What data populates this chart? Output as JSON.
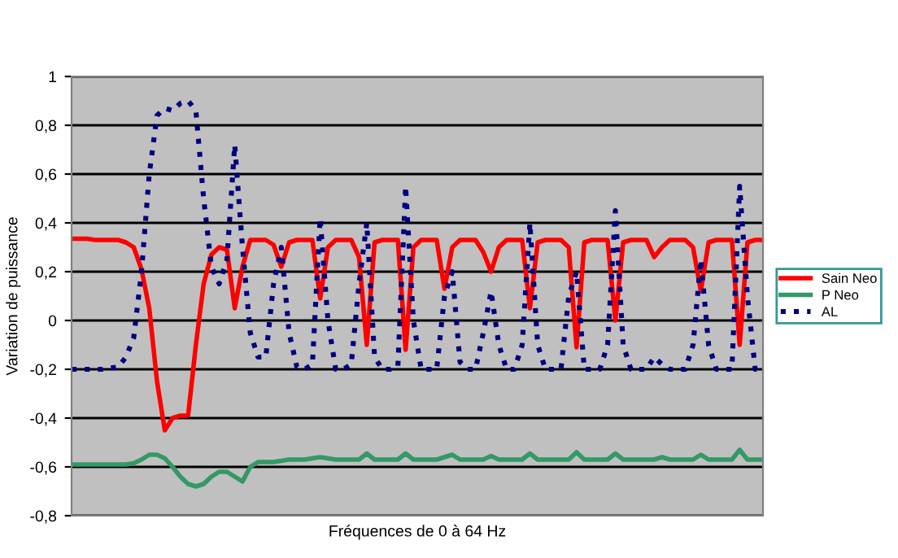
{
  "chart_data": {
    "type": "line",
    "xlabel": "Fréquences de 0 à 64 Hz",
    "ylabel": "Variation de puissance",
    "categories": [
      null,
      null,
      null,
      null,
      null,
      null,
      null,
      null,
      null,
      null,
      null,
      null,
      null,
      null,
      null,
      null,
      null,
      null,
      null,
      null,
      null,
      null,
      null,
      null,
      null,
      null,
      null,
      null,
      null,
      null,
      null,
      null,
      null,
      null,
      null,
      null,
      null,
      null,
      null,
      null,
      null,
      null,
      null,
      null,
      null,
      null,
      null,
      null,
      null,
      null,
      null,
      null,
      null,
      null,
      null,
      null,
      null,
      null,
      null,
      null,
      null,
      null,
      null,
      null,
      null,
      null,
      null,
      null,
      null,
      null,
      null,
      null,
      null,
      null,
      null,
      null,
      null,
      null,
      null,
      null,
      null,
      null,
      null,
      null,
      null,
      null,
      null,
      null,
      null,
      null
    ],
    "series": [
      {
        "name": "Sain Neo",
        "color": "#ff0000",
        "line_style": "solid",
        "values": [
          0.335,
          0.335,
          0.335,
          0.33,
          0.33,
          0.33,
          0.33,
          0.32,
          0.3,
          0.21,
          0.05,
          -0.25,
          -0.45,
          -0.4,
          -0.39,
          -0.39,
          -0.1,
          0.15,
          0.27,
          0.3,
          0.29,
          0.05,
          0.22,
          0.33,
          0.33,
          0.33,
          0.31,
          0.22,
          0.32,
          0.33,
          0.33,
          0.33,
          0.09,
          0.3,
          0.33,
          0.33,
          0.33,
          0.26,
          -0.1,
          0.32,
          0.33,
          0.33,
          0.33,
          -0.12,
          0.3,
          0.33,
          0.33,
          0.33,
          0.13,
          0.3,
          0.33,
          0.33,
          0.33,
          0.28,
          0.2,
          0.3,
          0.33,
          0.33,
          0.33,
          0.05,
          0.32,
          0.33,
          0.33,
          0.33,
          0.3,
          -0.11,
          0.32,
          0.33,
          0.33,
          0.33,
          0.0,
          0.32,
          0.33,
          0.33,
          0.33,
          0.26,
          0.3,
          0.33,
          0.33,
          0.33,
          0.3,
          0.12,
          0.32,
          0.33,
          0.33,
          0.33,
          -0.1,
          0.32,
          0.33,
          0.33
        ]
      },
      {
        "name": "P Neo",
        "color": "#339966",
        "line_style": "solid",
        "values": [
          -0.59,
          -0.59,
          -0.59,
          -0.59,
          -0.59,
          -0.59,
          -0.59,
          -0.59,
          -0.585,
          -0.57,
          -0.55,
          -0.55,
          -0.565,
          -0.6,
          -0.64,
          -0.67,
          -0.68,
          -0.67,
          -0.64,
          -0.62,
          -0.62,
          -0.64,
          -0.66,
          -0.6,
          -0.58,
          -0.58,
          -0.58,
          -0.575,
          -0.57,
          -0.57,
          -0.57,
          -0.565,
          -0.56,
          -0.565,
          -0.57,
          -0.57,
          -0.57,
          -0.57,
          -0.545,
          -0.57,
          -0.57,
          -0.57,
          -0.57,
          -0.545,
          -0.57,
          -0.57,
          -0.57,
          -0.57,
          -0.56,
          -0.55,
          -0.57,
          -0.57,
          -0.57,
          -0.57,
          -0.555,
          -0.57,
          -0.57,
          -0.57,
          -0.57,
          -0.545,
          -0.57,
          -0.57,
          -0.57,
          -0.57,
          -0.57,
          -0.54,
          -0.57,
          -0.57,
          -0.57,
          -0.57,
          -0.545,
          -0.57,
          -0.57,
          -0.57,
          -0.57,
          -0.57,
          -0.56,
          -0.57,
          -0.57,
          -0.57,
          -0.57,
          -0.55,
          -0.57,
          -0.57,
          -0.57,
          -0.57,
          -0.53,
          -0.57,
          -0.57,
          -0.57
        ]
      },
      {
        "name": "AL",
        "color": "#000080",
        "line_style": "dotted",
        "values": [
          -0.2,
          -0.2,
          -0.2,
          -0.2,
          -0.2,
          -0.195,
          -0.19,
          -0.15,
          -0.07,
          0.2,
          0.6,
          0.84,
          0.87,
          0.86,
          0.89,
          0.9,
          0.86,
          0.5,
          0.22,
          0.15,
          0.25,
          0.72,
          0.3,
          -0.05,
          -0.15,
          -0.15,
          0.15,
          0.3,
          -0.05,
          -0.19,
          -0.2,
          -0.18,
          0.42,
          0.0,
          -0.2,
          -0.2,
          -0.18,
          0.15,
          0.4,
          -0.15,
          -0.2,
          -0.2,
          -0.19,
          0.55,
          0.0,
          -0.2,
          -0.2,
          -0.2,
          0.1,
          0.2,
          -0.17,
          -0.2,
          -0.2,
          -0.05,
          0.12,
          -0.1,
          -0.2,
          -0.2,
          -0.1,
          0.4,
          -0.1,
          -0.2,
          -0.2,
          -0.2,
          0.1,
          0.2,
          -0.2,
          -0.2,
          -0.2,
          -0.1,
          0.45,
          -0.1,
          -0.2,
          -0.2,
          -0.2,
          -0.15,
          -0.18,
          -0.2,
          -0.2,
          -0.2,
          -0.1,
          0.25,
          -0.1,
          -0.2,
          -0.2,
          -0.2,
          0.55,
          0.1,
          -0.2,
          -0.2
        ]
      }
    ],
    "ylim": [
      -0.8,
      1
    ],
    "yticks": [
      {
        "value": -0.8,
        "label": "-0,8"
      },
      {
        "value": -0.6,
        "label": "-0,6"
      },
      {
        "value": -0.4,
        "label": "-0,4"
      },
      {
        "value": -0.2,
        "label": "-0,2"
      },
      0,
      {
        "value": 0.2,
        "label": "0,2"
      },
      {
        "value": 0.4,
        "label": "0,4"
      },
      {
        "value": 0.6,
        "label": "0,6"
      },
      {
        "value": 0.8,
        "label": "0,8"
      },
      1
    ],
    "grid": "y",
    "legend": "right",
    "tick_labels": "y"
  }
}
